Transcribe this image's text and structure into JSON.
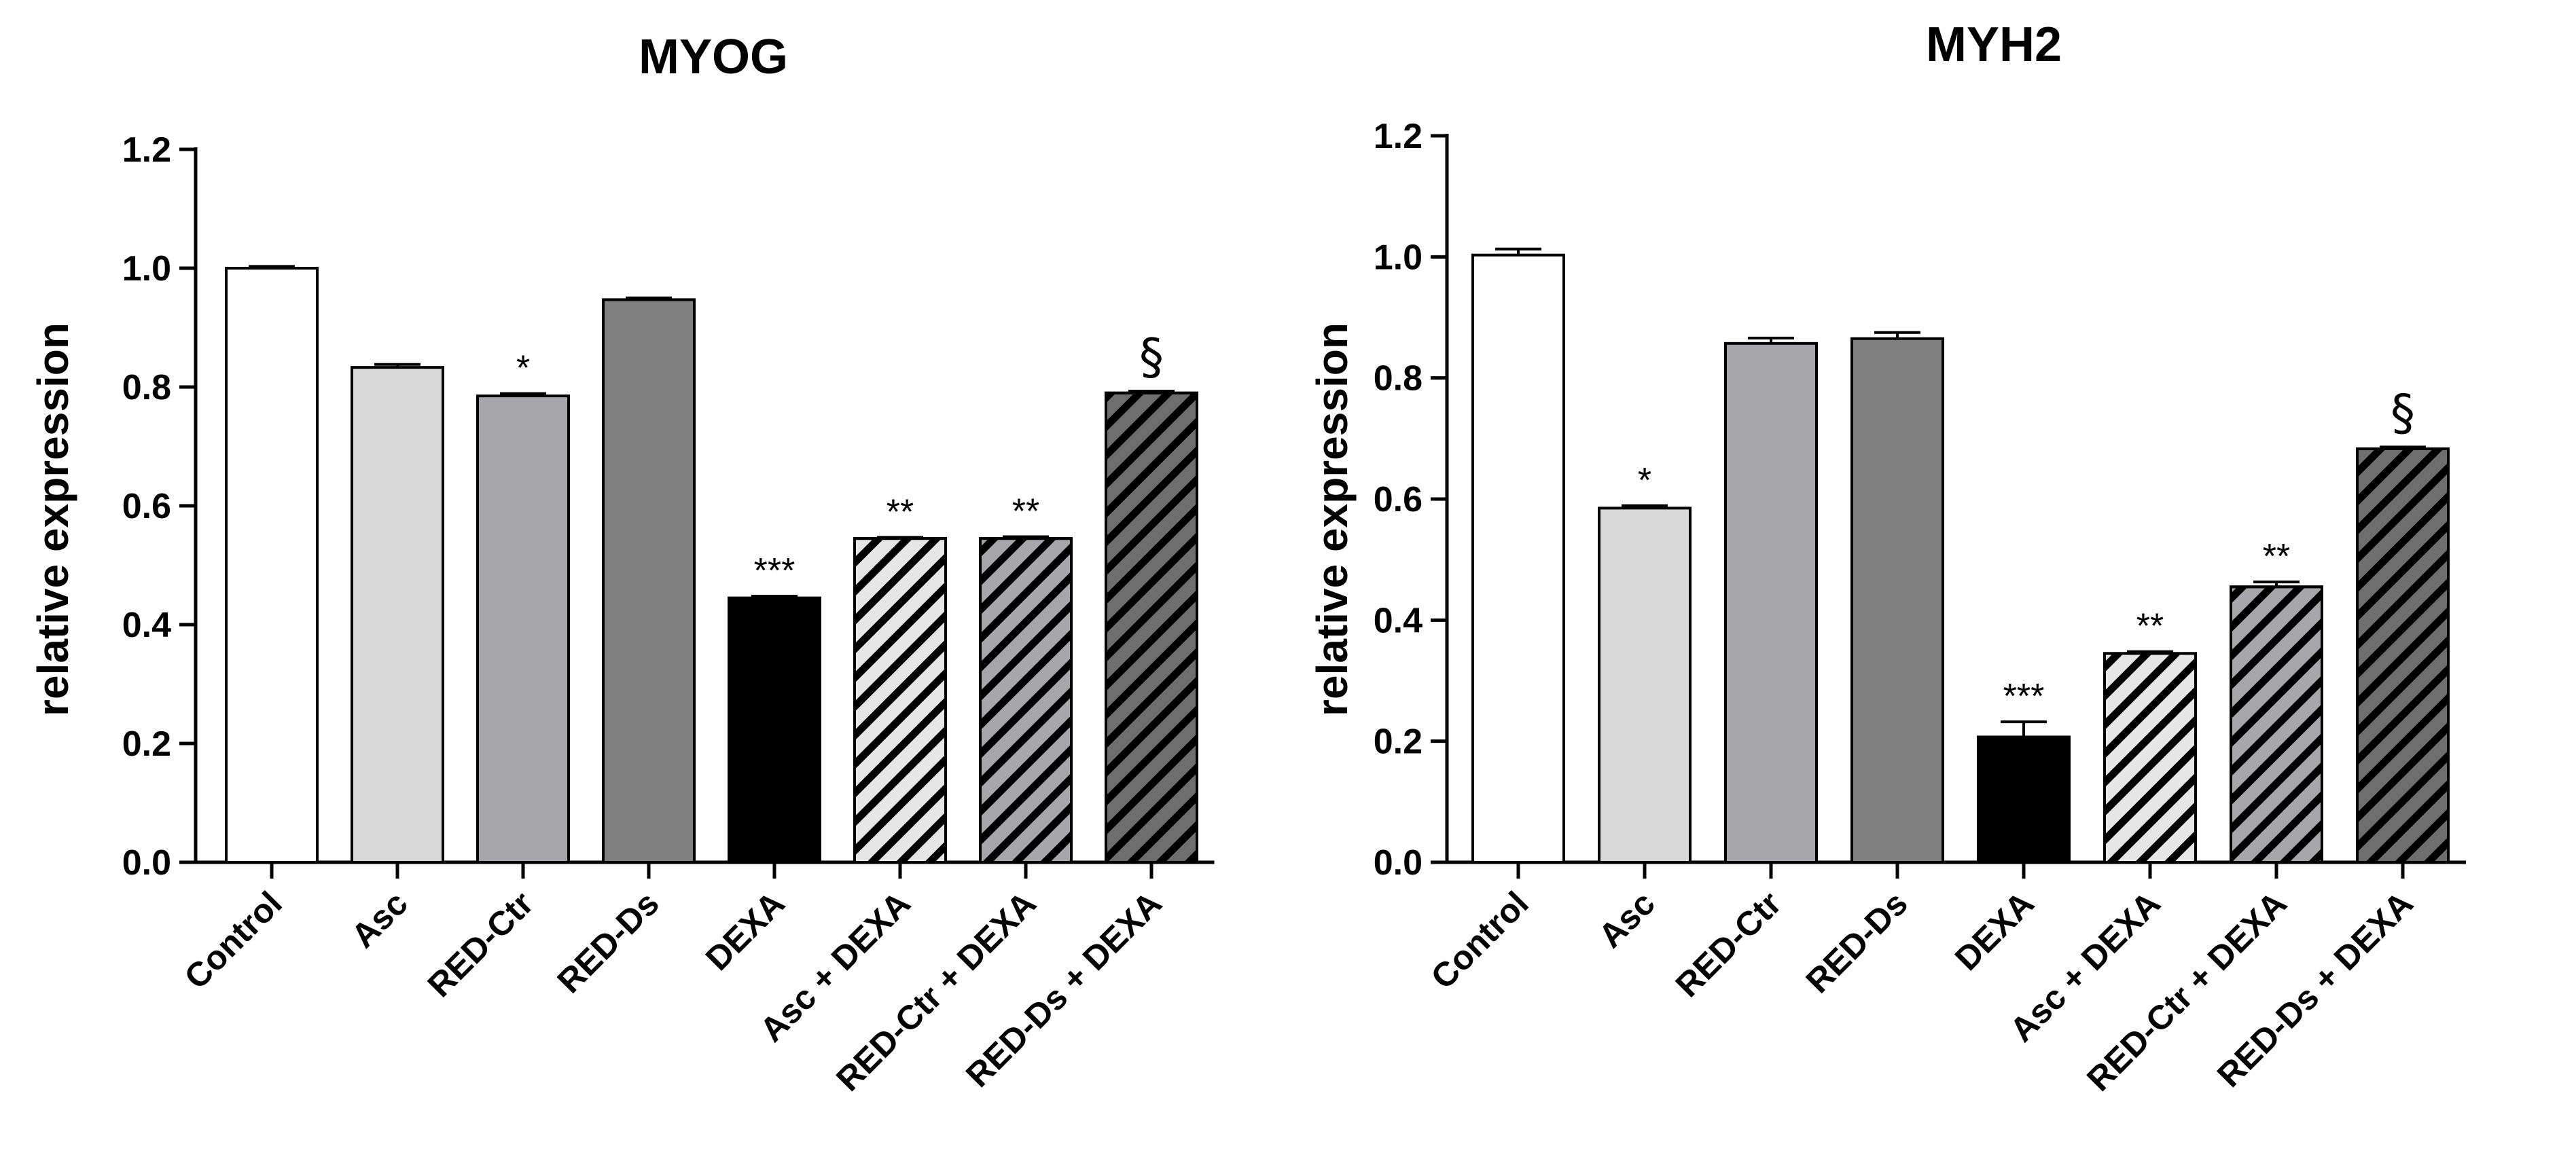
{
  "chart_data": [
    {
      "type": "bar",
      "title": "MYOG",
      "xlabel": "",
      "ylabel": "relative expression",
      "ylim": [
        0,
        1.2
      ],
      "yticks": [
        "0.0",
        "0.2",
        "0.4",
        "0.6",
        "0.8",
        "1.0",
        "1.2"
      ],
      "categories": [
        "Control",
        "Asc",
        "RED-Ctr",
        "RED-Ds",
        "DEXA",
        "Asc + DEXA",
        "RED-Ctr + DEXA",
        "RED-Ds + DEXA"
      ],
      "values": [
        1.0,
        0.833,
        0.785,
        0.947,
        0.445,
        0.545,
        0.545,
        0.79
      ],
      "errors": [
        0.003,
        0.005,
        0.004,
        0.003,
        0.003,
        0.002,
        0.003,
        0.003
      ],
      "significance": [
        "",
        "",
        "*",
        "",
        "***",
        "**",
        "**",
        "§"
      ],
      "bar_fills": [
        "#ffffff",
        "#d9d9d9",
        "#a6a6ab",
        "#808080",
        "#000000",
        "#e6e6e6",
        "#a6a6ab",
        "#6e6e6e"
      ],
      "hatched": [
        false,
        false,
        false,
        false,
        false,
        true,
        true,
        true
      ]
    },
    {
      "type": "bar",
      "title": "MYH2",
      "xlabel": "",
      "ylabel": "relative expression",
      "ylim": [
        0,
        1.2
      ],
      "yticks": [
        "0.0",
        "0.2",
        "0.4",
        "0.6",
        "0.8",
        "1.0",
        "1.2"
      ],
      "categories": [
        "Control",
        "Asc",
        "RED-Ctr",
        "RED-Ds",
        "DEXA",
        "Asc + DEXA",
        "RED-Ctr + DEXA",
        "RED-Ds + DEXA"
      ],
      "values": [
        1.003,
        0.585,
        0.857,
        0.865,
        0.207,
        0.345,
        0.455,
        0.683
      ],
      "errors": [
        0.01,
        0.004,
        0.009,
        0.01,
        0.025,
        0.003,
        0.008,
        0.003
      ],
      "significance": [
        "",
        "*",
        "",
        "",
        "***",
        "**",
        "**",
        "§"
      ],
      "bar_fills": [
        "#ffffff",
        "#d9d9d9",
        "#a6a6ab",
        "#808080",
        "#000000",
        "#e6e6e6",
        "#a6a6ab",
        "#6e6e6e"
      ],
      "hatched": [
        false,
        false,
        false,
        false,
        false,
        true,
        true,
        true
      ]
    }
  ]
}
